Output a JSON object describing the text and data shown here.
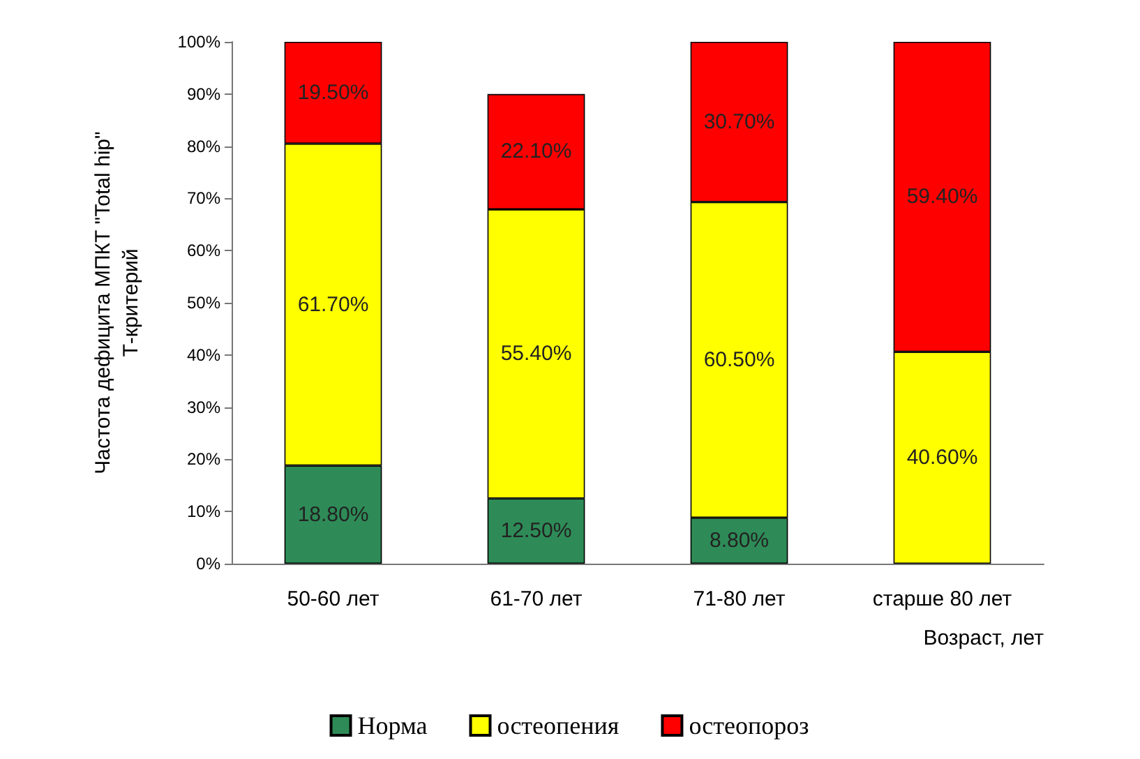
{
  "chart_data": {
    "type": "bar",
    "stacked": true,
    "categories": [
      "50-60 лет",
      "61-70 лет",
      "71-80 лет",
      "старше 80 лет"
    ],
    "series": [
      {
        "name": "Норма",
        "color": "#2e8b57",
        "values": [
          18.8,
          12.5,
          8.8,
          null
        ],
        "value_labels": [
          "18.80%",
          "12.50%",
          "8.80%",
          null
        ]
      },
      {
        "name": "остеопения",
        "color": "#ffff00",
        "values": [
          61.7,
          55.4,
          60.5,
          40.6
        ],
        "value_labels": [
          "61.70%",
          "55.40%",
          "60.50%",
          "40.60%"
        ]
      },
      {
        "name": "остеопороз",
        "color": "#ff0000",
        "values": [
          19.5,
          22.1,
          30.7,
          59.4
        ],
        "value_labels": [
          "19.50%",
          "22.10%",
          "30.70%",
          "59.40%"
        ]
      }
    ],
    "ylabel": "Частота дефицита МПКТ \"Total hip\"\nТ-критерий",
    "xlabel": "Возраст, лет",
    "ylim": [
      0,
      100
    ],
    "yticks": [
      {
        "value": 0,
        "label": "0%"
      },
      {
        "value": 10,
        "label": "10%"
      },
      {
        "value": 20,
        "label": "20%"
      },
      {
        "value": 30,
        "label": "30%"
      },
      {
        "value": 40,
        "label": "40%"
      },
      {
        "value": 50,
        "label": "50%"
      },
      {
        "value": 60,
        "label": "60%"
      },
      {
        "value": 70,
        "label": "70%"
      },
      {
        "value": 80,
        "label": "80%"
      },
      {
        "value": 90,
        "label": "90%"
      },
      {
        "value": 100,
        "label": "100%"
      }
    ],
    "legend": "bottom",
    "grid": false
  }
}
